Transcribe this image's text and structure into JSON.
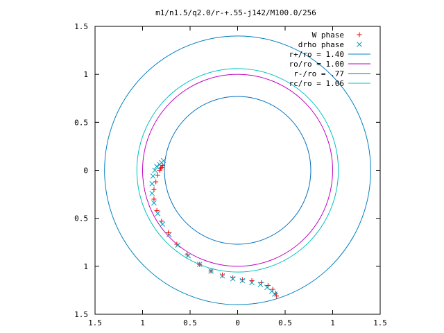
{
  "chart_data": {
    "type": "scatter",
    "title": "m1/n1.5/q2.0/r-+.55-j142/M100.0/256",
    "xlabel": "",
    "ylabel": "",
    "xlim": [
      -1.5,
      1.5
    ],
    "ylim": [
      -1.5,
      1.5
    ],
    "xticks": [
      -1.5,
      -1,
      -0.5,
      0,
      0.5,
      1,
      1.5
    ],
    "yticks": [
      1.5,
      1,
      0.5,
      0,
      -0.5,
      -1,
      -1.5
    ],
    "xtick_labels": [
      "1.5",
      "1",
      "0.5",
      "0",
      "0.5",
      "1",
      "1.5"
    ],
    "ytick_labels": [
      "1.5",
      "1",
      "0.5",
      "0",
      "0.5",
      "1",
      "1.5"
    ],
    "grid": false,
    "legend_position": "top-right",
    "series": [
      {
        "name": "W phase",
        "marker": "plus",
        "color": "#ff0000",
        "points": [
          [
            -0.79,
            0.05
          ],
          [
            -0.8,
            0.03
          ],
          [
            -0.81,
            0.02
          ],
          [
            -0.82,
            0.0
          ],
          [
            -0.84,
            -0.05
          ],
          [
            -0.86,
            -0.12
          ],
          [
            -0.88,
            -0.2
          ],
          [
            -0.88,
            -0.3
          ],
          [
            -0.85,
            -0.42
          ],
          [
            -0.8,
            -0.53
          ],
          [
            -0.73,
            -0.65
          ],
          [
            -0.64,
            -0.77
          ],
          [
            -0.53,
            -0.88
          ],
          [
            -0.4,
            -0.98
          ],
          [
            -0.28,
            -1.05
          ],
          [
            -0.16,
            -1.09
          ],
          [
            -0.05,
            -1.12
          ],
          [
            0.05,
            -1.14
          ],
          [
            0.15,
            -1.15
          ],
          [
            0.25,
            -1.17
          ],
          [
            0.32,
            -1.2
          ],
          [
            0.37,
            -1.24
          ],
          [
            0.4,
            -1.28
          ],
          [
            0.41,
            -1.31
          ]
        ]
      },
      {
        "name": "drho phase",
        "marker": "cross",
        "color": "#00a0c0",
        "points": [
          [
            -0.78,
            0.1
          ],
          [
            -0.8,
            0.08
          ],
          [
            -0.82,
            0.06
          ],
          [
            -0.85,
            0.04
          ],
          [
            -0.87,
            0.0
          ],
          [
            -0.89,
            -0.06
          ],
          [
            -0.9,
            -0.14
          ],
          [
            -0.9,
            -0.24
          ],
          [
            -0.88,
            -0.34
          ],
          [
            -0.84,
            -0.45
          ],
          [
            -0.79,
            -0.56
          ],
          [
            -0.72,
            -0.67
          ],
          [
            -0.63,
            -0.78
          ],
          [
            -0.52,
            -0.89
          ],
          [
            -0.4,
            -0.98
          ],
          [
            -0.28,
            -1.05
          ],
          [
            -0.16,
            -1.1
          ],
          [
            -0.05,
            -1.13
          ],
          [
            0.05,
            -1.15
          ],
          [
            0.15,
            -1.17
          ],
          [
            0.24,
            -1.19
          ],
          [
            0.31,
            -1.22
          ],
          [
            0.36,
            -1.26
          ],
          [
            0.39,
            -1.29
          ]
        ]
      },
      {
        "name": "r+/ro = 1.40",
        "type": "circle",
        "radius": 1.4,
        "color": "#0080c0"
      },
      {
        "name": "ro/ro = 1.00",
        "type": "circle",
        "radius": 1.0,
        "color": "#c000c0"
      },
      {
        "name": "r-/ro = .77",
        "type": "circle",
        "radius": 0.77,
        "color": "#0070c0"
      },
      {
        "name": "rc/ro = 1.06",
        "type": "circle",
        "radius": 1.06,
        "color": "#00c0c0"
      }
    ]
  }
}
